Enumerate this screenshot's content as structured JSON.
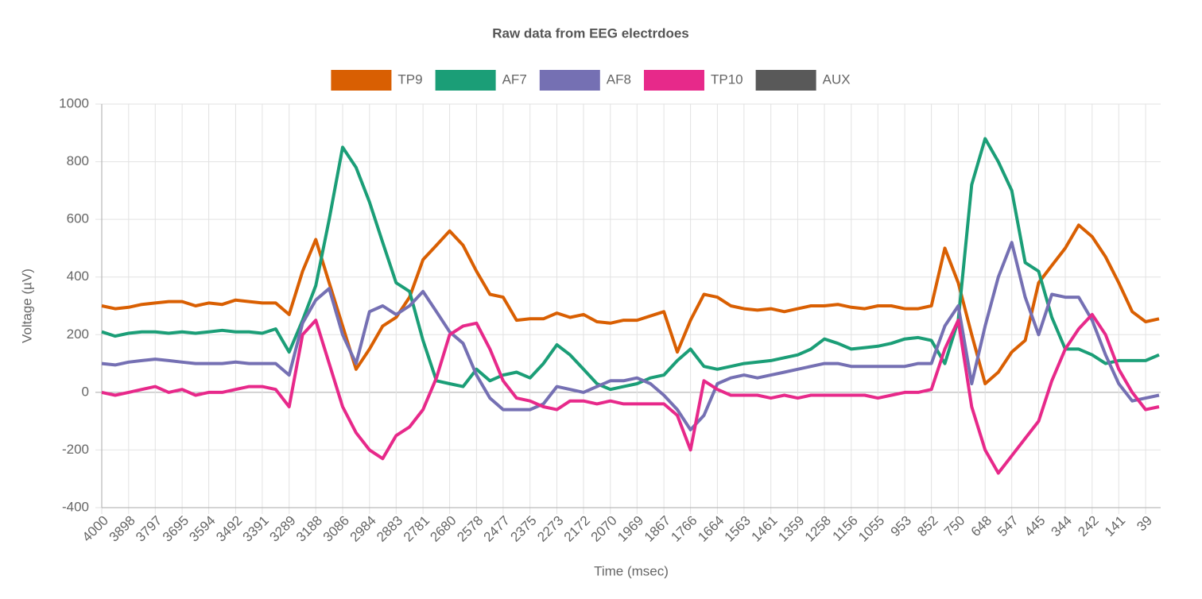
{
  "chart_data": {
    "type": "line",
    "title": "Raw data from EEG electrdoes",
    "x_label": "Time (msec)",
    "y_label": "Voltage (µV)",
    "x": [
      4000,
      3949,
      3898,
      3848,
      3797,
      3746,
      3695,
      3644,
      3594,
      3543,
      3492,
      3441,
      3391,
      3340,
      3289,
      3238,
      3188,
      3137,
      3086,
      3035,
      2984,
      2934,
      2883,
      2832,
      2781,
      2730,
      2680,
      2629,
      2578,
      2527,
      2477,
      2426,
      2375,
      2324,
      2273,
      2223,
      2172,
      2121,
      2070,
      2020,
      1969,
      1918,
      1867,
      1816,
      1766,
      1715,
      1664,
      1613,
      1563,
      1512,
      1461,
      1410,
      1359,
      1309,
      1258,
      1207,
      1156,
      1105,
      1055,
      1004,
      953,
      902,
      852,
      801,
      750,
      699,
      648,
      598,
      547,
      496,
      445,
      395,
      344,
      293,
      242,
      191,
      141,
      90,
      39,
      -12
    ],
    "series": [
      {
        "name": "TP9",
        "color": "#d95f02",
        "values": [
          300,
          290,
          295,
          305,
          310,
          315,
          315,
          300,
          310,
          305,
          320,
          315,
          310,
          310,
          270,
          420,
          530,
          380,
          230,
          80,
          150,
          230,
          260,
          330,
          460,
          510,
          560,
          510,
          420,
          340,
          330,
          250,
          255,
          255,
          275,
          260,
          270,
          245,
          240,
          250,
          250,
          265,
          280,
          140,
          250,
          340,
          330,
          300,
          290,
          285,
          290,
          280,
          290,
          300,
          300,
          305,
          295,
          290,
          300,
          300,
          290,
          290,
          300,
          500,
          380,
          200,
          30,
          70,
          140,
          180,
          380,
          440,
          500,
          580,
          540,
          470,
          380,
          280,
          245,
          255
        ]
      },
      {
        "name": "AF7",
        "color": "#1b9e77",
        "values": [
          210,
          195,
          205,
          210,
          210,
          205,
          210,
          205,
          210,
          215,
          210,
          210,
          205,
          220,
          140,
          250,
          370,
          600,
          850,
          780,
          660,
          520,
          380,
          350,
          180,
          40,
          30,
          20,
          80,
          40,
          60,
          70,
          50,
          100,
          165,
          130,
          80,
          30,
          10,
          20,
          30,
          50,
          60,
          110,
          150,
          90,
          80,
          90,
          100,
          105,
          110,
          120,
          130,
          150,
          185,
          170,
          150,
          155,
          160,
          170,
          185,
          190,
          180,
          100,
          250,
          720,
          880,
          800,
          700,
          450,
          420,
          260,
          150,
          150,
          130,
          100,
          110,
          110,
          110,
          130
        ]
      },
      {
        "name": "AF8",
        "color": "#7570b3",
        "values": [
          100,
          95,
          105,
          110,
          115,
          110,
          105,
          100,
          100,
          100,
          105,
          100,
          100,
          100,
          60,
          240,
          320,
          360,
          200,
          100,
          280,
          300,
          270,
          300,
          350,
          280,
          210,
          170,
          60,
          -20,
          -60,
          -60,
          -60,
          -40,
          20,
          10,
          0,
          20,
          40,
          40,
          50,
          30,
          -10,
          -60,
          -130,
          -80,
          30,
          50,
          60,
          50,
          60,
          70,
          80,
          90,
          100,
          100,
          90,
          90,
          90,
          90,
          90,
          100,
          100,
          230,
          300,
          30,
          230,
          400,
          520,
          330,
          200,
          340,
          330,
          330,
          250,
          130,
          30,
          -30,
          -20,
          -10
        ]
      },
      {
        "name": "TP10",
        "color": "#e7298a",
        "values": [
          0,
          -10,
          0,
          10,
          20,
          0,
          10,
          -10,
          0,
          0,
          10,
          20,
          20,
          10,
          -50,
          200,
          250,
          100,
          -50,
          -140,
          -200,
          -230,
          -150,
          -120,
          -60,
          50,
          200,
          230,
          240,
          150,
          40,
          -20,
          -30,
          -50,
          -60,
          -30,
          -30,
          -40,
          -30,
          -40,
          -40,
          -40,
          -40,
          -80,
          -200,
          40,
          10,
          -10,
          -10,
          -10,
          -20,
          -10,
          -20,
          -10,
          -10,
          -10,
          -10,
          -10,
          -20,
          -10,
          0,
          0,
          10,
          150,
          250,
          -50,
          -200,
          -280,
          -220,
          -160,
          -100,
          40,
          150,
          220,
          270,
          200,
          80,
          0,
          -60,
          -50
        ]
      },
      {
        "name": "AUX",
        "color": "#595959",
        "values": [
          null,
          null,
          null,
          null,
          null,
          null,
          null,
          null,
          null,
          null,
          null,
          null,
          null,
          null,
          null,
          null,
          null,
          null,
          null,
          null,
          null,
          null,
          null,
          null,
          null,
          null,
          null,
          null,
          null,
          null,
          null,
          null,
          null,
          null,
          null,
          null,
          null,
          null,
          null,
          null,
          null,
          null,
          null,
          null,
          null,
          null,
          null,
          null,
          null,
          null,
          null,
          null,
          null,
          null,
          null,
          null,
          null,
          null,
          null,
          null,
          null,
          null,
          null,
          null,
          null,
          null,
          null,
          null,
          null,
          null,
          null,
          null,
          null,
          null,
          null,
          null,
          null,
          null,
          null,
          null
        ]
      }
    ],
    "xlim": [
      4000,
      -18
    ],
    "xticks": [
      4000,
      3898,
      3797,
      3695,
      3594,
      3492,
      3391,
      3289,
      3188,
      3086,
      2984,
      2883,
      2781,
      2680,
      2578,
      2477,
      2375,
      2273,
      2172,
      2070,
      1969,
      1867,
      1766,
      1664,
      1563,
      1461,
      1359,
      1258,
      1156,
      1055,
      953,
      852,
      750,
      648,
      547,
      445,
      344,
      242,
      141,
      39
    ],
    "ylim": [
      -400,
      1000
    ],
    "yticks": [
      -400,
      -200,
      0,
      200,
      400,
      600,
      800,
      1000
    ],
    "grid": true,
    "legend": "top"
  }
}
